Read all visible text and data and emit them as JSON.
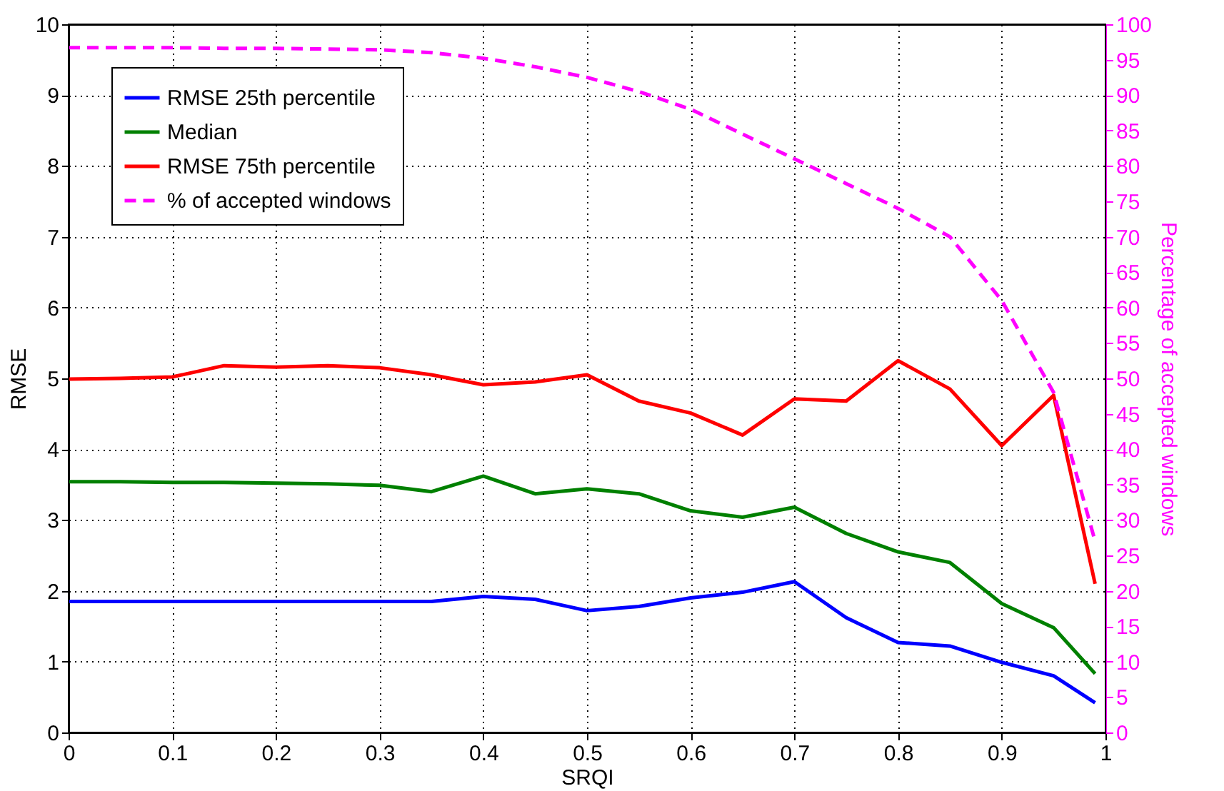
{
  "chart_data": {
    "type": "line",
    "xlabel": "SRQI",
    "ylabel": "RMSE",
    "y2label": "Percentage of accepted windows",
    "x": [
      0,
      0.05,
      0.1,
      0.15,
      0.2,
      0.25,
      0.3,
      0.35,
      0.4,
      0.45,
      0.5,
      0.55,
      0.6,
      0.65,
      0.7,
      0.75,
      0.8,
      0.85,
      0.9,
      0.95,
      0.99
    ],
    "series": [
      {
        "name": "RMSE 25th percentile",
        "color": "#0000ff",
        "values": [
          1.85,
          1.85,
          1.85,
          1.85,
          1.85,
          1.85,
          1.85,
          1.85,
          1.92,
          1.88,
          1.72,
          1.78,
          1.9,
          1.98,
          2.13,
          1.62,
          1.27,
          1.22,
          0.99,
          0.8,
          0.42
        ]
      },
      {
        "name": "Median",
        "color": "#008000",
        "values": [
          3.54,
          3.54,
          3.53,
          3.53,
          3.52,
          3.51,
          3.49,
          3.4,
          3.62,
          3.37,
          3.44,
          3.37,
          3.13,
          3.04,
          3.18,
          2.81,
          2.55,
          2.4,
          1.82,
          1.48,
          0.83
        ]
      },
      {
        "name": "RMSE 75th percentile",
        "color": "#ff0000",
        "values": [
          4.99,
          5.0,
          5.02,
          5.18,
          5.16,
          5.18,
          5.15,
          5.05,
          4.91,
          4.95,
          5.05,
          4.68,
          4.51,
          4.2,
          4.71,
          4.68,
          5.25,
          4.85,
          4.05,
          4.76,
          2.1
        ]
      },
      {
        "name": "% of accepted windows",
        "color": "#ff00ff",
        "axis": "y2",
        "line_style": "dashed",
        "values": [
          96.7,
          96.7,
          96.7,
          96.6,
          96.6,
          96.5,
          96.4,
          96.0,
          95.2,
          94.0,
          92.5,
          90.5,
          88.0,
          84.5,
          81.0,
          77.5,
          74.0,
          70.0,
          61.0,
          48.0,
          27.0
        ]
      }
    ],
    "xlim": [
      0,
      1
    ],
    "xticks": [
      0,
      0.1,
      0.2,
      0.3,
      0.4,
      0.5,
      0.6,
      0.7,
      0.8,
      0.9,
      1
    ],
    "ylim": [
      0,
      10
    ],
    "yticks": [
      0,
      1,
      2,
      3,
      4,
      5,
      6,
      7,
      8,
      9,
      10
    ],
    "y2lim": [
      0,
      100
    ],
    "y2ticks": [
      0,
      5,
      10,
      15,
      20,
      25,
      30,
      35,
      40,
      45,
      50,
      55,
      60,
      65,
      70,
      75,
      80,
      85,
      90,
      95,
      100
    ],
    "grid": true,
    "legend": "top left",
    "line_style": "solid",
    "marker": "none"
  }
}
